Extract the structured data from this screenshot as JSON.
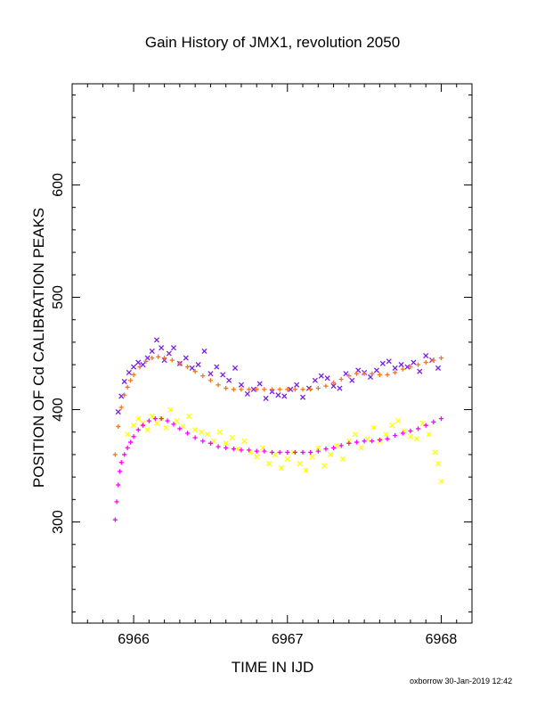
{
  "chart_data": {
    "type": "scatter",
    "title": "Gain History of JMX1, revolution 2050",
    "xlabel": "TIME IN IJD",
    "ylabel": "POSITION OF Cd CALIBRATION PEAKS",
    "xlim": [
      6965.6,
      6968.2
    ],
    "ylim": [
      210,
      690
    ],
    "x_ticks": [
      6966,
      6967,
      6968
    ],
    "x_tick_labels": [
      "6966",
      "6967",
      "6968"
    ],
    "y_ticks": [
      300,
      400,
      500,
      600
    ],
    "y_tick_labels": [
      "300",
      "400",
      "500",
      "600"
    ],
    "grid": false,
    "series": [
      {
        "marker": "x",
        "color": "#7a1ee6",
        "x": [
          6965.9,
          6965.92,
          6965.94,
          6965.97,
          6966.0,
          6966.03,
          6966.06,
          6966.09,
          6966.12,
          6966.15,
          6966.18,
          6966.2,
          6966.23,
          6966.26,
          6966.3,
          6966.34,
          6966.38,
          6966.42,
          6966.46,
          6966.5,
          6966.54,
          6966.58,
          6966.62,
          6966.66,
          6966.7,
          6966.74,
          6966.78,
          6966.82,
          6966.86,
          6966.9,
          6966.94,
          6966.98,
          6967.02,
          6967.06,
          6967.1,
          6967.14,
          6967.18,
          6967.22,
          6967.26,
          6967.3,
          6967.34,
          6967.38,
          6967.42,
          6967.46,
          6967.5,
          6967.54,
          6967.58,
          6967.62,
          6967.66,
          6967.7,
          6967.74,
          6967.78,
          6967.82,
          6967.86,
          6967.9,
          6967.94,
          6967.98
        ],
        "y": [
          398,
          412,
          425,
          433,
          438,
          442,
          440,
          446,
          452,
          462,
          455,
          444,
          450,
          455,
          441,
          446,
          437,
          440,
          452,
          432,
          438,
          431,
          426,
          437,
          422,
          414,
          418,
          423,
          410,
          416,
          413,
          412,
          418,
          422,
          411,
          419,
          426,
          430,
          428,
          421,
          419,
          432,
          426,
          435,
          433,
          429,
          435,
          441,
          443,
          437,
          440,
          438,
          442,
          434,
          448,
          444,
          437
        ]
      },
      {
        "marker": "+",
        "color": "#f07a1e",
        "x": [
          6965.88,
          6965.9,
          6965.92,
          6965.94,
          6965.96,
          6965.98,
          6966.0,
          6966.04,
          6966.08,
          6966.12,
          6966.16,
          6966.2,
          6966.25,
          6966.3,
          6966.35,
          6966.4,
          6966.45,
          6966.5,
          6966.55,
          6966.6,
          6966.65,
          6966.7,
          6966.75,
          6966.8,
          6966.85,
          6966.9,
          6966.95,
          6967.0,
          6967.05,
          6967.1,
          6967.15,
          6967.2,
          6967.25,
          6967.3,
          6967.35,
          6967.4,
          6967.45,
          6967.5,
          6967.55,
          6967.6,
          6967.65,
          6967.7,
          6967.75,
          6967.8,
          6967.85,
          6967.9,
          6967.95,
          6968.0
        ],
        "y": [
          360,
          385,
          402,
          413,
          420,
          426,
          431,
          438,
          443,
          446,
          447,
          446,
          444,
          441,
          438,
          434,
          430,
          426,
          422,
          419,
          418,
          418,
          418,
          418,
          418,
          418,
          418,
          418,
          418,
          418,
          418,
          419,
          421,
          424,
          427,
          430,
          432,
          432,
          432,
          431,
          431,
          433,
          436,
          438,
          440,
          442,
          444,
          446
        ]
      },
      {
        "marker": "x",
        "color": "#ffff00",
        "x": [
          6965.96,
          6966.0,
          6966.03,
          6966.06,
          6966.09,
          6966.12,
          6966.15,
          6966.18,
          6966.21,
          6966.24,
          6966.28,
          6966.32,
          6966.36,
          6966.4,
          6966.44,
          6966.48,
          6966.52,
          6966.56,
          6966.6,
          6966.64,
          6966.68,
          6966.72,
          6966.76,
          6966.8,
          6966.84,
          6966.88,
          6966.92,
          6966.96,
          6967.0,
          6967.04,
          6967.08,
          6967.12,
          6967.16,
          6967.2,
          6967.24,
          6967.28,
          6967.32,
          6967.36,
          6967.4,
          6967.44,
          6967.48,
          6967.52,
          6967.56,
          6967.6,
          6967.64,
          6967.68,
          6967.72,
          6967.76,
          6967.8,
          6967.84,
          6967.88,
          6967.92,
          6967.96,
          6967.98,
          6968.0
        ],
        "y": [
          378,
          386,
          392,
          388,
          382,
          394,
          388,
          392,
          384,
          400,
          390,
          385,
          394,
          382,
          380,
          378,
          372,
          380,
          370,
          375,
          365,
          372,
          362,
          358,
          366,
          352,
          360,
          348,
          356,
          362,
          352,
          346,
          358,
          366,
          350,
          360,
          368,
          356,
          372,
          378,
          366,
          374,
          384,
          372,
          378,
          386,
          390,
          381,
          376,
          374,
          388,
          378,
          362,
          352,
          336
        ]
      },
      {
        "marker": "+",
        "color": "#ff00ff",
        "x": [
          6965.88,
          6965.89,
          6965.9,
          6965.91,
          6965.92,
          6965.94,
          6965.96,
          6965.98,
          6966.0,
          6966.03,
          6966.06,
          6966.1,
          6966.14,
          6966.18,
          6966.22,
          6966.26,
          6966.3,
          6966.35,
          6966.4,
          6966.45,
          6966.5,
          6966.55,
          6966.6,
          6966.65,
          6966.7,
          6966.75,
          6966.8,
          6966.85,
          6966.9,
          6966.95,
          6967.0,
          6967.05,
          6967.1,
          6967.15,
          6967.2,
          6967.25,
          6967.3,
          6967.35,
          6967.4,
          6967.45,
          6967.5,
          6967.55,
          6967.6,
          6967.65,
          6967.7,
          6967.75,
          6967.8,
          6967.85,
          6967.9,
          6967.95,
          6968.0
        ],
        "y": [
          302,
          318,
          333,
          345,
          353,
          360,
          366,
          371,
          376,
          382,
          386,
          390,
          392,
          392,
          390,
          387,
          383,
          379,
          375,
          372,
          370,
          367,
          366,
          365,
          364,
          364,
          363,
          363,
          362,
          362,
          362,
          362,
          362,
          362,
          363,
          365,
          366,
          368,
          370,
          371,
          372,
          372,
          373,
          374,
          377,
          379,
          381,
          383,
          386,
          389,
          392
        ]
      }
    ]
  },
  "footer": "oxborrow 30-Jan-2019 12:42"
}
